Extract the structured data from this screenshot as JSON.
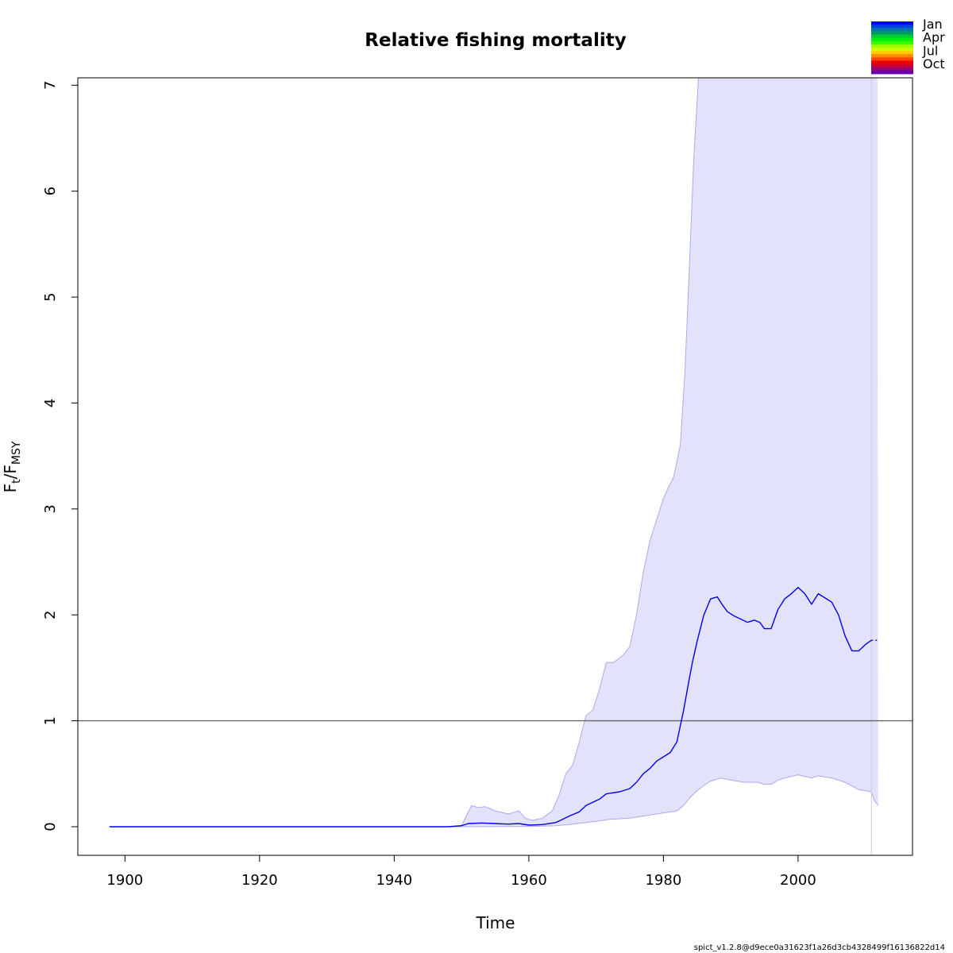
{
  "chart_data": {
    "type": "line",
    "title": "Relative fishing mortality",
    "xlabel": "Time",
    "ylabel": {
      "main": "F",
      "sub1": "t",
      "sep": "/F",
      "sub2": "MSY"
    },
    "xlim": [
      1893.0,
      2017.0
    ],
    "ylim": [
      -0.27,
      7.07
    ],
    "xticks": [
      1900,
      1920,
      1940,
      1960,
      1980,
      2000
    ],
    "yticks": [
      0,
      1,
      2,
      3,
      4,
      5,
      6,
      7
    ],
    "reference_line": 1,
    "vline": 2010.9,
    "grid": false,
    "colors": {
      "estimate": "#0000ee",
      "ci_fill": "#e2e2fb",
      "ci_edge": "#aaaaee",
      "reference": "#666666",
      "vline": "#cccccc"
    },
    "series": [
      {
        "role": "estimate",
        "x": [
          1897.7,
          1940,
          1948,
          1950,
          1951,
          1953,
          1955,
          1957,
          1958.5,
          1960,
          1962,
          1964,
          1965,
          1966,
          1967.5,
          1968.5,
          1969.5,
          1970.5,
          1971.5,
          1972.5,
          1973.5,
          1975,
          1976,
          1977,
          1978,
          1979,
          1980,
          1981,
          1982,
          1983,
          1983.7,
          1984.3,
          1985,
          1986,
          1987,
          1988,
          1988.7,
          1989.5,
          1990.5,
          1991.5,
          1992.5,
          1993.5,
          1994.3,
          1995,
          1996,
          1997,
          1998,
          1999,
          2000,
          2001,
          2002,
          2003,
          2004,
          2005,
          2006,
          2007,
          2008,
          2009,
          2010,
          2010.9
        ],
        "values": [
          0.0,
          0.0,
          0.0,
          0.01,
          0.03,
          0.035,
          0.03,
          0.025,
          0.03,
          0.015,
          0.02,
          0.04,
          0.07,
          0.1,
          0.14,
          0.2,
          0.23,
          0.26,
          0.31,
          0.32,
          0.33,
          0.36,
          0.42,
          0.5,
          0.55,
          0.62,
          0.66,
          0.7,
          0.8,
          1.1,
          1.35,
          1.55,
          1.75,
          2.0,
          2.15,
          2.17,
          2.1,
          2.03,
          1.99,
          1.96,
          1.93,
          1.95,
          1.93,
          1.87,
          1.87,
          2.05,
          2.15,
          2.2,
          2.26,
          2.2,
          2.1,
          2.2,
          2.16,
          2.12,
          2.0,
          1.8,
          1.66,
          1.66,
          1.72,
          1.76
        ]
      },
      {
        "role": "forecast",
        "x": [
          2010.9,
          2011.8
        ],
        "values": [
          1.76,
          1.76
        ]
      },
      {
        "role": "ci_upper",
        "x": [
          1897.7,
          1948,
          1950,
          1950.7,
          1951.5,
          1952.5,
          1953.5,
          1955,
          1957,
          1958,
          1958.5,
          1959.5,
          1960.5,
          1962,
          1963.5,
          1964.5,
          1965.5,
          1966.5,
          1967.5,
          1968.5,
          1969.5,
          1970.5,
          1971.5,
          1972.5,
          1973,
          1974,
          1975,
          1976,
          1977,
          1978,
          1979,
          1980,
          1980.7,
          1981.5,
          1982.5,
          1983.2,
          1983.8,
          1984.5,
          1985.2,
          1985.6
        ],
        "values": [
          0.0,
          0.0,
          0.01,
          0.1,
          0.2,
          0.18,
          0.19,
          0.15,
          0.12,
          0.14,
          0.15,
          0.08,
          0.06,
          0.08,
          0.15,
          0.3,
          0.5,
          0.58,
          0.8,
          1.05,
          1.1,
          1.3,
          1.55,
          1.55,
          1.57,
          1.62,
          1.7,
          2.0,
          2.4,
          2.7,
          2.9,
          3.1,
          3.2,
          3.3,
          3.6,
          4.3,
          5.2,
          6.3,
          7.07,
          7.07
        ]
      },
      {
        "role": "ci_upper_tail",
        "x": [
          2011.9,
          2011.8
        ],
        "values": [
          7.07,
          7.07
        ]
      },
      {
        "role": "ci_lower",
        "x": [
          1897.7,
          1948,
          1960,
          1962,
          1964,
          1966,
          1968,
          1970,
          1972,
          1975,
          1978,
          1980,
          1982,
          1983,
          1984,
          1985,
          1986,
          1987,
          1988.5,
          1990,
          1992,
          1994,
          1995,
          1996,
          1997,
          1998,
          2000,
          2002,
          2003,
          2005,
          2007,
          2009,
          2010,
          2010.9,
          2011.3,
          2011.9
        ],
        "values": [
          0.0,
          0.0,
          0.003,
          0.005,
          0.01,
          0.02,
          0.035,
          0.05,
          0.07,
          0.08,
          0.11,
          0.13,
          0.15,
          0.2,
          0.28,
          0.34,
          0.39,
          0.43,
          0.46,
          0.44,
          0.42,
          0.42,
          0.4,
          0.4,
          0.44,
          0.46,
          0.49,
          0.46,
          0.48,
          0.46,
          0.42,
          0.35,
          0.34,
          0.33,
          0.25,
          0.2
        ]
      }
    ],
    "legend": {
      "placement": "top-right",
      "entries": [
        "Jan",
        "Apr",
        "Jul",
        "Oct"
      ],
      "color_bands": [
        "#0000ff",
        "#0044dd",
        "#0077aa",
        "#009966",
        "#00cc33",
        "#00ee11",
        "#33ff00",
        "#99ff00",
        "#ccff00",
        "#ffcc00",
        "#ff8800",
        "#ff4400",
        "#ee0000",
        "#cc0033",
        "#990077",
        "#6600aa"
      ]
    }
  },
  "footer": "spict_v1.2.8@d9ece0a31623f1a26d3cb4328499f16136822d14"
}
